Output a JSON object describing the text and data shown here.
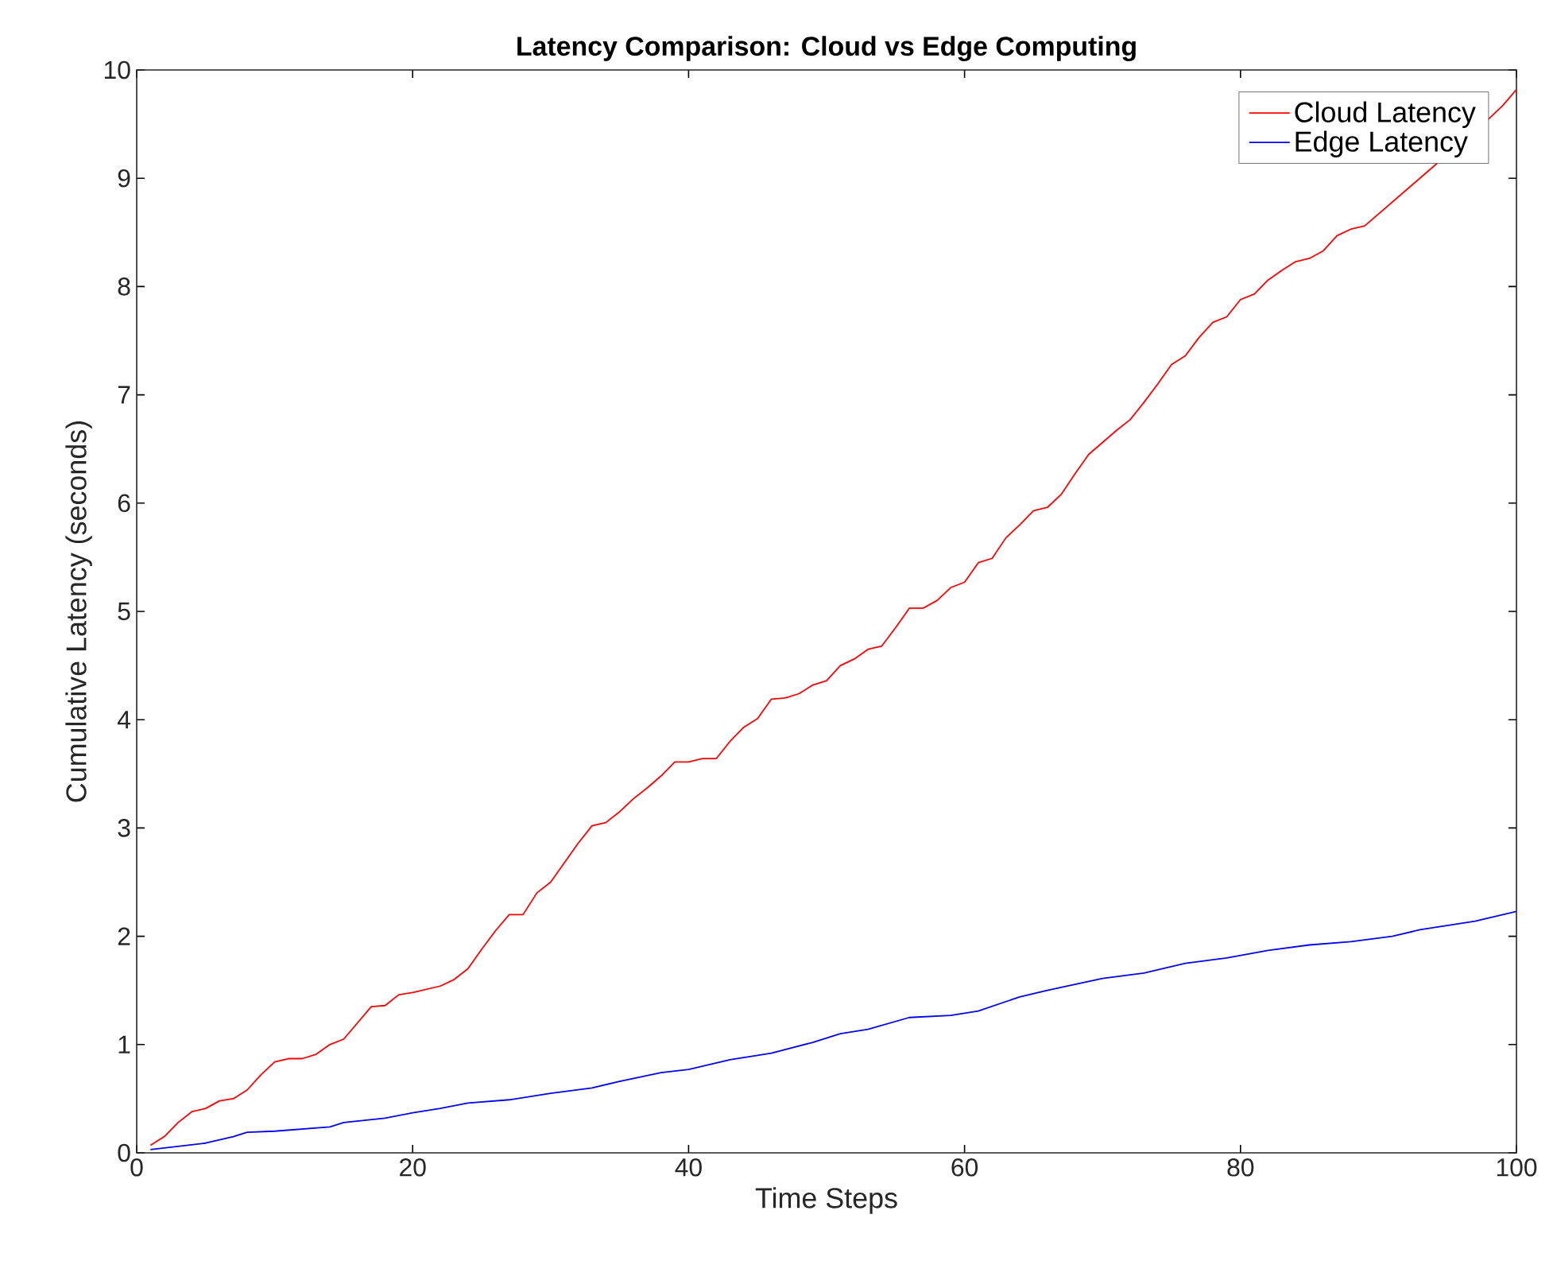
{
  "chart_data": {
    "type": "line",
    "title": "Latency Comparison: Cloud vs Edge Computing",
    "xlabel": "Time Steps",
    "ylabel": "Cumulative Latency (seconds)",
    "xlim": [
      0,
      100
    ],
    "ylim": [
      0,
      10
    ],
    "xticks": [
      0,
      20,
      40,
      60,
      80,
      100
    ],
    "yticks": [
      0,
      1,
      2,
      3,
      4,
      5,
      6,
      7,
      8,
      9,
      10
    ],
    "grid": false,
    "legend": "top right",
    "marker": "none",
    "line_style": "solid",
    "series": [
      {
        "name": "Cloud Latency",
        "color": "#ff0000",
        "x": [
          1,
          2,
          3,
          4,
          5,
          6,
          7,
          8,
          9,
          10,
          11,
          12,
          13,
          14,
          15,
          16,
          17,
          18,
          19,
          20,
          21,
          22,
          23,
          24,
          25,
          26,
          27,
          28,
          29,
          30,
          31,
          32,
          33,
          34,
          35,
          36,
          37,
          38,
          39,
          40,
          41,
          42,
          43,
          44,
          45,
          46,
          47,
          48,
          49,
          50,
          51,
          52,
          53,
          54,
          55,
          56,
          57,
          58,
          59,
          60,
          61,
          62,
          63,
          64,
          65,
          66,
          67,
          68,
          69,
          70,
          71,
          72,
          73,
          74,
          75,
          76,
          77,
          78,
          79,
          80,
          81,
          82,
          83,
          84,
          85,
          86,
          87,
          88,
          89,
          90,
          91,
          92,
          93,
          94,
          95,
          96,
          97,
          98,
          99,
          100
        ],
        "values": [
          0.07,
          0.15,
          0.28,
          0.38,
          0.41,
          0.48,
          0.5,
          0.58,
          0.72,
          0.84,
          0.87,
          0.87,
          0.91,
          1.0,
          1.05,
          1.2,
          1.35,
          1.36,
          1.46,
          1.48,
          1.51,
          1.54,
          1.6,
          1.7,
          1.88,
          2.05,
          2.2,
          2.2,
          2.4,
          2.5,
          2.68,
          2.86,
          3.02,
          3.05,
          3.15,
          3.27,
          3.37,
          3.48,
          3.61,
          3.61,
          3.64,
          3.64,
          3.8,
          3.93,
          4.01,
          4.19,
          4.2,
          4.24,
          4.32,
          4.36,
          4.5,
          4.56,
          4.65,
          4.68,
          4.85,
          5.03,
          5.03,
          5.1,
          5.22,
          5.27,
          5.45,
          5.49,
          5.68,
          5.8,
          5.93,
          5.96,
          6.08,
          6.27,
          6.45,
          6.56,
          6.67,
          6.77,
          6.93,
          7.1,
          7.28,
          7.36,
          7.53,
          7.67,
          7.72,
          7.88,
          7.93,
          8.06,
          8.15,
          8.23,
          8.26,
          8.33,
          8.47,
          8.53,
          8.56,
          null,
          null,
          null,
          null,
          null,
          null,
          null,
          null,
          9.55,
          9.67,
          9.82
        ]
      },
      {
        "name": "Edge Latency",
        "color": "#0000ff",
        "x": [
          1,
          5,
          6,
          7,
          8,
          10,
          14,
          15,
          18,
          20,
          22,
          24,
          27,
          30,
          33,
          35,
          38,
          40,
          43,
          46,
          49,
          51,
          53,
          56,
          59,
          61,
          64,
          66,
          70,
          73,
          76,
          79,
          82,
          85,
          88,
          91,
          93,
          97,
          100
        ],
        "values": [
          0.03,
          0.09,
          0.12,
          0.15,
          0.19,
          0.2,
          0.24,
          0.28,
          0.32,
          0.37,
          0.41,
          0.46,
          0.49,
          0.55,
          0.6,
          0.66,
          0.74,
          0.77,
          0.86,
          0.92,
          1.02,
          1.1,
          1.14,
          1.25,
          1.27,
          1.31,
          1.44,
          1.5,
          1.61,
          1.66,
          1.75,
          1.8,
          1.87,
          1.92,
          1.95,
          2.0,
          2.06,
          2.14,
          2.23
        ]
      }
    ]
  }
}
